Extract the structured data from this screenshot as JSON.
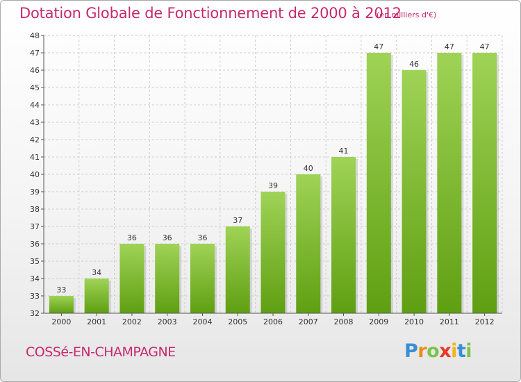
{
  "title": "Dotation Globale de Fonctionnement de 2000 à 2012",
  "unit_note": "(en milliers d'€)",
  "commune": "COSSé-EN-CHAMPAGNE",
  "logo": {
    "letters": [
      "P",
      "r",
      "o",
      "x",
      "i",
      "t",
      "i"
    ],
    "colors": [
      "#3a8ed6",
      "#f08a1c",
      "#7cc34a",
      "#e8372c",
      "#f2b51b",
      "#3a8ed6",
      "#7cc34a"
    ]
  },
  "colors": {
    "bar_top": "#9fd356",
    "bar_bottom": "#5f9f12",
    "grid": "#cccccc",
    "text_accent": "#c8286f"
  },
  "chart_data": {
    "type": "bar",
    "title": "Dotation Globale de Fonctionnement de 2000 à 2012",
    "subtitle": "(en milliers d'€)",
    "xlabel": "",
    "ylabel": "",
    "categories": [
      "2000",
      "2001",
      "2002",
      "2003",
      "2004",
      "2005",
      "2006",
      "2007",
      "2008",
      "2009",
      "2010",
      "2011",
      "2012"
    ],
    "values": [
      33,
      34,
      36,
      36,
      36,
      37,
      39,
      40,
      41,
      47,
      46,
      47,
      47
    ],
    "ylim": [
      32,
      48
    ],
    "yticks": [
      32,
      33,
      34,
      35,
      36,
      37,
      38,
      39,
      40,
      41,
      42,
      43,
      44,
      45,
      46,
      47,
      48
    ],
    "grid": true,
    "data_labels": true
  }
}
